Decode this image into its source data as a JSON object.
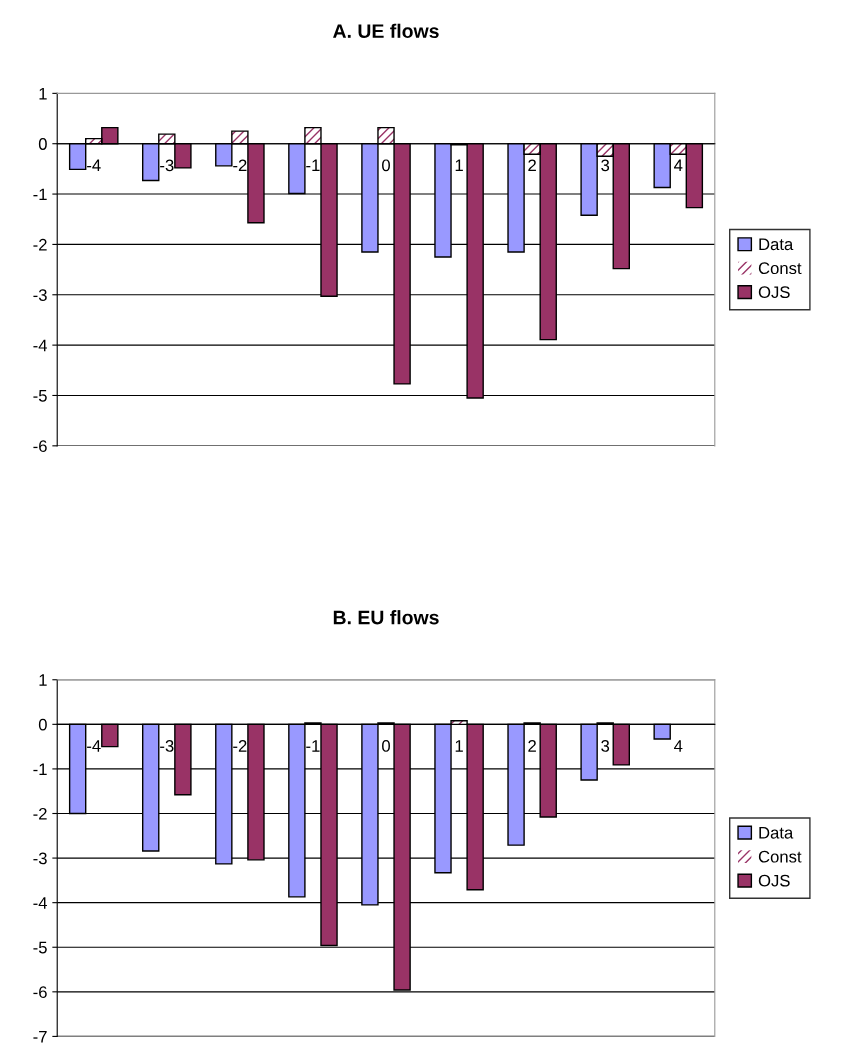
{
  "chart_data": [
    {
      "type": "bar",
      "title": "A. UE flows",
      "categories": [
        "-4",
        "-3",
        "-2",
        "-1",
        "0",
        "1",
        "2",
        "3",
        "4"
      ],
      "ylim": [
        -6,
        1
      ],
      "yticks": [
        -6,
        -5,
        -4,
        -3,
        -2,
        -1,
        0,
        1
      ],
      "grid": "y",
      "legend": "right",
      "series": [
        {
          "name": "Data",
          "color": "#9999ff",
          "values": [
            -0.51,
            -0.73,
            -0.44,
            -0.99,
            -2.15,
            -2.25,
            -2.15,
            -1.42,
            -0.87
          ]
        },
        {
          "name": "Const",
          "color": "#993366",
          "values": [
            0.1,
            0.19,
            0.25,
            0.32,
            0.32,
            -0.02,
            -0.21,
            -0.25,
            -0.21
          ]
        },
        {
          "name": "OJS",
          "color": "#993366",
          "values": [
            0.32,
            -0.48,
            -1.57,
            -3.03,
            -4.77,
            -5.05,
            -3.89,
            -2.48,
            -1.27
          ]
        }
      ]
    },
    {
      "type": "bar",
      "title": "B. EU flows",
      "categories": [
        "-4",
        "-3",
        "-2",
        "-1",
        "0",
        "1",
        "2",
        "3",
        "4"
      ],
      "ylim": [
        -7,
        1
      ],
      "yticks": [
        -7,
        -6,
        -5,
        -4,
        -3,
        -2,
        -1,
        0,
        1
      ],
      "grid": "y",
      "legend": "right",
      "series": [
        {
          "name": "Data",
          "color": "#9999ff",
          "values": [
            -2.0,
            -2.84,
            -3.13,
            -3.87,
            -4.05,
            -3.33,
            -2.71,
            -1.25,
            -0.33
          ]
        },
        {
          "name": "Const",
          "color": "#993366",
          "values": [
            0,
            0,
            0,
            0.03,
            0.03,
            0.08,
            0.03,
            0.03,
            0
          ]
        },
        {
          "name": "OJS",
          "color": "#993366",
          "values": [
            -0.5,
            -1.58,
            -3.04,
            -4.96,
            -5.96,
            -3.71,
            -2.08,
            -0.91,
            null
          ]
        }
      ]
    }
  ]
}
